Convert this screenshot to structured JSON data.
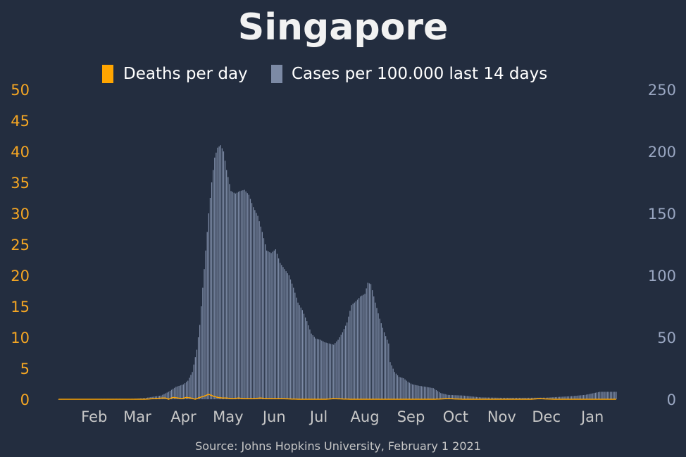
{
  "chart_data": {
    "type": "bar",
    "title": "Singapore",
    "source": "Source: Johns Hopkins University, February 1 2021",
    "legend": {
      "position": "top-center",
      "items": [
        {
          "label": "Deaths per day",
          "color": "#ffa500"
        },
        {
          "label": "Cases per 100.000 last 14 days",
          "color": "#7c8aa5"
        }
      ]
    },
    "x_start": "2020-01-22",
    "x_end": "2021-01-31",
    "x_ticks": [
      {
        "date": "2020-02-15",
        "label": "Feb"
      },
      {
        "date": "2020-03-15",
        "label": "Mar"
      },
      {
        "date": "2020-04-15",
        "label": "Apr"
      },
      {
        "date": "2020-05-15",
        "label": "May"
      },
      {
        "date": "2020-06-15",
        "label": "Jun"
      },
      {
        "date": "2020-07-15",
        "label": "Jul"
      },
      {
        "date": "2020-08-15",
        "label": "Aug"
      },
      {
        "date": "2020-09-15",
        "label": "Sep"
      },
      {
        "date": "2020-10-15",
        "label": "Oct"
      },
      {
        "date": "2020-11-15",
        "label": "Nov"
      },
      {
        "date": "2020-12-15",
        "label": "Dec"
      },
      {
        "date": "2021-01-15",
        "label": "Jan"
      }
    ],
    "y_left": {
      "label": "Deaths per day",
      "range": [
        0,
        50
      ],
      "ticks": [
        0,
        5,
        10,
        15,
        20,
        25,
        30,
        35,
        40,
        45,
        50
      ],
      "color": "#f5a623"
    },
    "y_right": {
      "label": "Cases per 100.000 last 14 days",
      "range": [
        0,
        250
      ],
      "ticks": [
        0,
        50,
        100,
        150,
        200,
        250
      ],
      "color": "#9aa7c2"
    },
    "grid": false,
    "series": [
      {
        "name": "Cases per 100.000 last 14 days",
        "type": "bar",
        "axis": "right",
        "color": "#7c8aa5",
        "points": [
          [
            "2020-01-22",
            0
          ],
          [
            "2020-02-01",
            0.1
          ],
          [
            "2020-02-15",
            0.3
          ],
          [
            "2020-03-01",
            0.4
          ],
          [
            "2020-03-10",
            0.3
          ],
          [
            "2020-03-20",
            1
          ],
          [
            "2020-03-31",
            3
          ],
          [
            "2020-04-05",
            6
          ],
          [
            "2020-04-10",
            10
          ],
          [
            "2020-04-15",
            12
          ],
          [
            "2020-04-18",
            15
          ],
          [
            "2020-04-21",
            22
          ],
          [
            "2020-04-24",
            40
          ],
          [
            "2020-04-26",
            60
          ],
          [
            "2020-04-28",
            90
          ],
          [
            "2020-04-30",
            120
          ],
          [
            "2020-05-02",
            150
          ],
          [
            "2020-05-04",
            175
          ],
          [
            "2020-05-06",
            195
          ],
          [
            "2020-05-08",
            203
          ],
          [
            "2020-05-10",
            205
          ],
          [
            "2020-05-12",
            200
          ],
          [
            "2020-05-14",
            185
          ],
          [
            "2020-05-17",
            168
          ],
          [
            "2020-05-20",
            166
          ],
          [
            "2020-05-23",
            168
          ],
          [
            "2020-05-26",
            169
          ],
          [
            "2020-05-29",
            165
          ],
          [
            "2020-06-01",
            155
          ],
          [
            "2020-06-04",
            148
          ],
          [
            "2020-06-07",
            135
          ],
          [
            "2020-06-10",
            120
          ],
          [
            "2020-06-13",
            118
          ],
          [
            "2020-06-16",
            121
          ],
          [
            "2020-06-19",
            110
          ],
          [
            "2020-06-22",
            105
          ],
          [
            "2020-06-25",
            100
          ],
          [
            "2020-06-28",
            90
          ],
          [
            "2020-07-01",
            78
          ],
          [
            "2020-07-04",
            72
          ],
          [
            "2020-07-07",
            63
          ],
          [
            "2020-07-10",
            53
          ],
          [
            "2020-07-13",
            49
          ],
          [
            "2020-07-16",
            48
          ],
          [
            "2020-07-19",
            46
          ],
          [
            "2020-07-22",
            45
          ],
          [
            "2020-07-25",
            44
          ],
          [
            "2020-07-28",
            48
          ],
          [
            "2020-07-31",
            54
          ],
          [
            "2020-08-03",
            62
          ],
          [
            "2020-08-06",
            76
          ],
          [
            "2020-08-09",
            79
          ],
          [
            "2020-08-12",
            83
          ],
          [
            "2020-08-15",
            85
          ],
          [
            "2020-08-17",
            94
          ],
          [
            "2020-08-19",
            93
          ],
          [
            "2020-08-22",
            78
          ],
          [
            "2020-08-25",
            65
          ],
          [
            "2020-08-28",
            54
          ],
          [
            "2020-08-31",
            45
          ],
          [
            "2020-09-01",
            30
          ],
          [
            "2020-09-04",
            22
          ],
          [
            "2020-09-07",
            18
          ],
          [
            "2020-09-10",
            17
          ],
          [
            "2020-09-13",
            14
          ],
          [
            "2020-09-16",
            12
          ],
          [
            "2020-09-20",
            11
          ],
          [
            "2020-09-25",
            10
          ],
          [
            "2020-09-30",
            9
          ],
          [
            "2020-10-05",
            5
          ],
          [
            "2020-10-10",
            3.5
          ],
          [
            "2020-10-20",
            3
          ],
          [
            "2020-11-01",
            1.5
          ],
          [
            "2020-11-15",
            1.2
          ],
          [
            "2020-12-01",
            1.2
          ],
          [
            "2020-12-15",
            1.3
          ],
          [
            "2021-01-01",
            2.5
          ],
          [
            "2021-01-10",
            3.5
          ],
          [
            "2021-01-20",
            6
          ],
          [
            "2021-01-31",
            6
          ]
        ]
      },
      {
        "name": "Deaths per day",
        "type": "line",
        "axis": "left",
        "color": "#ffa500",
        "points": [
          [
            "2020-01-22",
            0
          ],
          [
            "2020-03-20",
            0
          ],
          [
            "2020-04-01",
            0.2
          ],
          [
            "2020-04-03",
            0.2
          ],
          [
            "2020-04-05",
            0
          ],
          [
            "2020-04-08",
            0.3
          ],
          [
            "2020-04-11",
            0.2
          ],
          [
            "2020-04-14",
            0.1
          ],
          [
            "2020-04-17",
            0.3
          ],
          [
            "2020-04-20",
            0.2
          ],
          [
            "2020-04-23",
            0
          ],
          [
            "2020-04-26",
            0.3
          ],
          [
            "2020-04-29",
            0.5
          ],
          [
            "2020-05-02",
            0.8
          ],
          [
            "2020-05-05",
            0.5
          ],
          [
            "2020-05-08",
            0.3
          ],
          [
            "2020-05-11",
            0.2
          ],
          [
            "2020-05-14",
            0.2
          ],
          [
            "2020-05-18",
            0.1
          ],
          [
            "2020-05-22",
            0.2
          ],
          [
            "2020-05-26",
            0.1
          ],
          [
            "2020-06-01",
            0.1
          ],
          [
            "2020-06-06",
            0.2
          ],
          [
            "2020-06-10",
            0.1
          ],
          [
            "2020-06-20",
            0.1
          ],
          [
            "2020-07-01",
            0
          ],
          [
            "2020-07-20",
            0
          ],
          [
            "2020-07-25",
            0.1
          ],
          [
            "2020-08-05",
            0
          ],
          [
            "2020-10-01",
            0
          ],
          [
            "2020-10-10",
            0.1
          ],
          [
            "2020-10-20",
            0
          ],
          [
            "2020-12-05",
            0
          ],
          [
            "2020-12-10",
            0.1
          ],
          [
            "2020-12-20",
            0
          ],
          [
            "2021-01-31",
            0
          ]
        ]
      }
    ]
  }
}
